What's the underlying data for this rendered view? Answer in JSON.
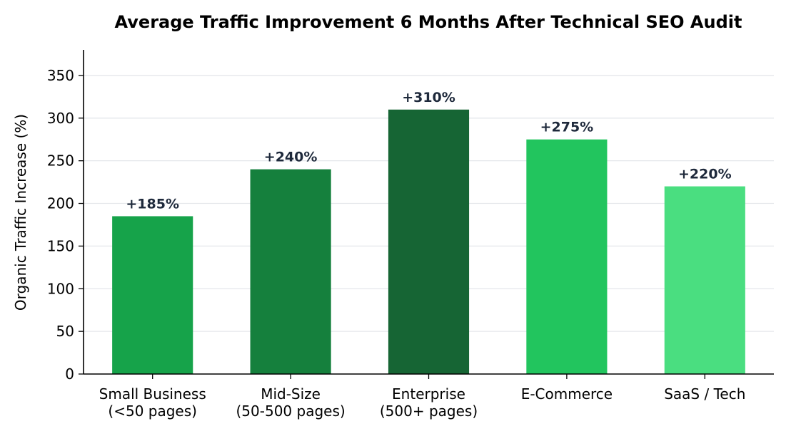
{
  "chart_data": {
    "type": "bar",
    "title": "Average Traffic Improvement 6 Months After Technical SEO Audit",
    "xlabel": "",
    "ylabel": "Organic Traffic Increase (%)",
    "ylim": [
      0,
      380
    ],
    "yticks": [
      0,
      50,
      100,
      150,
      200,
      250,
      300,
      350
    ],
    "grid": "horizontal",
    "categories": [
      [
        "Small Business",
        "(<50 pages)"
      ],
      [
        "Mid-Size",
        "(50-500 pages)"
      ],
      [
        "Enterprise",
        "(500+ pages)"
      ],
      [
        "E-Commerce"
      ],
      [
        "SaaS / Tech"
      ]
    ],
    "values": [
      185,
      240,
      310,
      275,
      220
    ],
    "data_labels": [
      "+185%",
      "+240%",
      "+310%",
      "+275%",
      "+220%"
    ],
    "colors": [
      "#16a34a",
      "#15803d",
      "#166534",
      "#22c55e",
      "#4ade80"
    ],
    "label_color": "#1e293b",
    "grid_color": "#e5e7eb"
  }
}
